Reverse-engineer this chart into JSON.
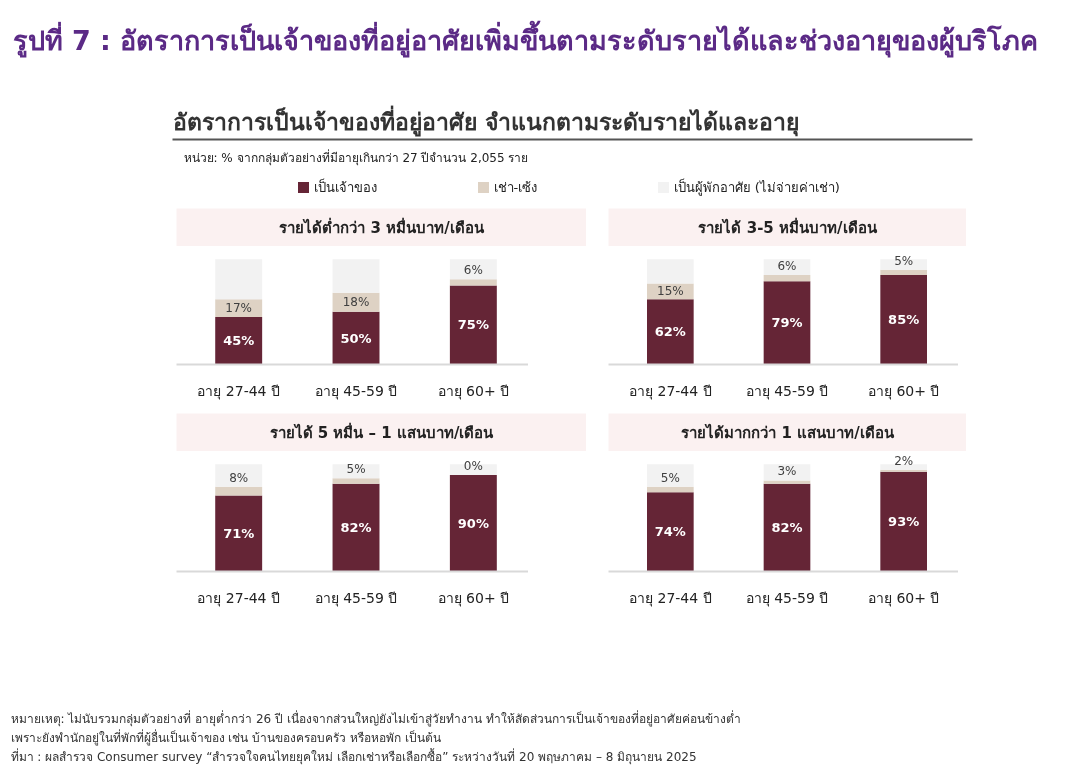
{
  "chart_data": [
    {
      "type": "other",
      "title": "รูปที่ 7 : อัตราการเป็นเจ้าของที่อยู่อาศัยเพิ่มขึ้นตามระดับรายได้และช่วงอายุของผู้บริโภค",
      "subtitle": "อัตราการเป็นเจ้าของที่อยู่อาศัย จำแนกตามระดับรายได้และอายุ",
      "annotations": [
        "หน่วย: % จากกลุ่มตัวอย่างที่มีอายุเกินกว่า 27 ปีจำนวน 2,055 ราย",
        "หมายเหตุ: ไม่นับรวมกลุ่มตัวอย่างที่ อายุต่ำกว่า 26 ปี เนื่องจากส่วนใหญ่ยังไม่เข้าสู่วัยทำงาน ทำให้สัดส่วนการเป็นเจ้าของที่อยู่อาศัยค่อนข้างต่ำ",
        "เพราะยังพำนักอยู่ในที่พักที่ผู้อื่นเป็นเจ้าของ เช่น บ้านของครอบครัว หรือหอพัก เป็นต้น",
        "ที่มา : ผลสำรวจ Consumer survey “สำรวจใจคนไทยยุคใหม่ เลือกเช่าหรือเลือกซื้อ” ระหว่างวันที่ 20 พฤษภาคม – 8 มิถุนายน 2025"
      ]
    },
    {
      "type": "bar",
      "stacked": true,
      "legend": "top",
      "title": "รายได้ต่ำกว่า 3 หมื่นบาท/เดือน",
      "categories": [
        "อายุ 27-44 ปี",
        "อายุ 45-59 ปี",
        "อายุ 60+ ปี"
      ],
      "series": [
        {
          "name": "เป็นเจ้าของ",
          "color": "#652536",
          "values": [
            45,
            50,
            75
          ],
          "value_labels": [
            "45%",
            "50%",
            "75%"
          ]
        },
        {
          "name": "เช่า-เซ้ง",
          "color": "#ded2c4",
          "values": [
            17,
            18,
            6
          ],
          "value_labels": [
            "17%",
            "18%",
            "6%"
          ]
        },
        {
          "name": "เป็นผู้พักอาศัย (ไม่จ่ายค่าเช่า)",
          "color": "#f2f2f2",
          "values": [
            38,
            32,
            19
          ]
        }
      ]
    },
    {
      "type": "bar",
      "stacked": true,
      "title": "รายได้ 3-5 หมื่นบาท/เดือน",
      "categories": [
        "อายุ 27-44 ปี",
        "อายุ 45-59 ปี",
        "อายุ 60+ ปี"
      ],
      "series": [
        {
          "color": "#652536",
          "values": [
            62,
            79,
            85
          ],
          "value_labels": [
            "62%",
            "79%",
            "85%"
          ]
        },
        {
          "color": "#ded2c4",
          "values": [
            15,
            6,
            5
          ],
          "value_labels": [
            "15%",
            "6%",
            "5%"
          ]
        },
        {
          "color": "#f2f2f2",
          "values": [
            23,
            15,
            10
          ]
        }
      ]
    },
    {
      "type": "bar",
      "stacked": true,
      "title": "รายได้ 5 หมื่น – 1 แสนบาท/เดือน",
      "categories": [
        "อายุ 27-44 ปี",
        "อายุ 45-59 ปี",
        "อายุ 60+ ปี"
      ],
      "series": [
        {
          "color": "#652536",
          "values": [
            71,
            82,
            90
          ],
          "value_labels": [
            "71%",
            "82%",
            "90%"
          ]
        },
        {
          "color": "#ded2c4",
          "values": [
            8,
            5,
            0
          ],
          "value_labels": [
            "8%",
            "5%",
            "0%"
          ]
        },
        {
          "color": "#f2f2f2",
          "values": [
            21,
            13,
            10
          ]
        }
      ]
    },
    {
      "type": "bar",
      "stacked": true,
      "title": "รายได้มากกว่า 1 แสนบาท/เดือน",
      "categories": [
        "อายุ 27-44 ปี",
        "อายุ 45-59 ปี",
        "อายุ 60+ ปี"
      ],
      "series": [
        {
          "color": "#652536",
          "values": [
            74,
            82,
            93
          ],
          "value_labels": [
            "74%",
            "82%",
            "93%"
          ]
        },
        {
          "color": "#ded2c4",
          "values": [
            5,
            3,
            2
          ],
          "value_labels": [
            "5%",
            "3%",
            "2%"
          ]
        },
        {
          "color": "#f2f2f2",
          "values": [
            21,
            15,
            5
          ]
        }
      ]
    }
  ]
}
